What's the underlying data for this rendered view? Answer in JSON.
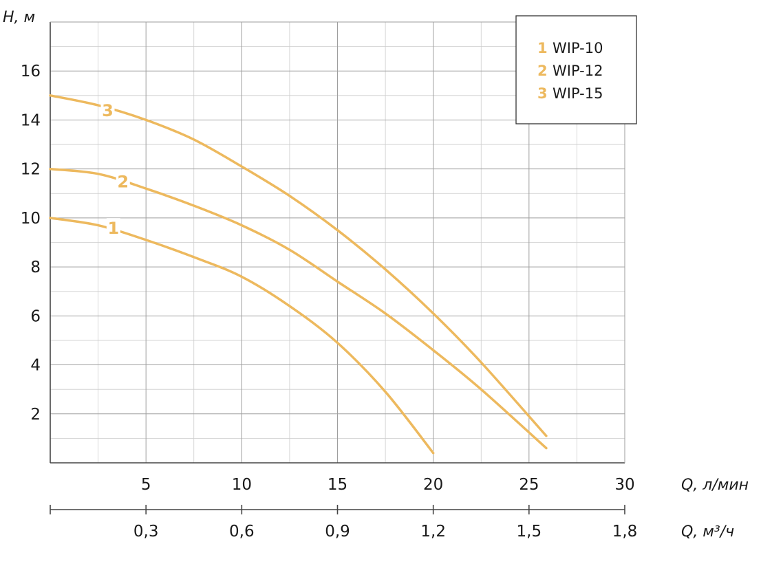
{
  "chart_data": {
    "type": "line",
    "ylabel": "H, м",
    "xlabel": "Q, л/мин",
    "x2label": "Q, м³/ч",
    "xlim": [
      0,
      30
    ],
    "ylim": [
      0,
      18
    ],
    "y_ticks": [
      2,
      4,
      6,
      8,
      10,
      12,
      14,
      16
    ],
    "x_ticks": [
      {
        "value": 5,
        "label": "5"
      },
      {
        "value": 10,
        "label": "10"
      },
      {
        "value": 15,
        "label": "15"
      },
      {
        "value": 20,
        "label": "20"
      },
      {
        "value": 25,
        "label": "25"
      },
      {
        "value": 30,
        "label": "30"
      }
    ],
    "x2_ticks": [
      {
        "value": 5,
        "label": "0,3"
      },
      {
        "value": 10,
        "label": "0,6"
      },
      {
        "value": 15,
        "label": "0,9"
      },
      {
        "value": 20,
        "label": "1,2"
      },
      {
        "value": 25,
        "label": "1,5"
      },
      {
        "value": 30,
        "label": "1,8"
      }
    ],
    "grid": true,
    "legend_position": "top-right",
    "curve_color": "#edb95e",
    "series": [
      {
        "name": "WIP-10",
        "label": "1",
        "label_at": [
          3.3,
          9.6
        ],
        "x": [
          0,
          2.5,
          5,
          7.5,
          10,
          12.5,
          15,
          17.5,
          20
        ],
        "y": [
          10.0,
          9.7,
          9.1,
          8.4,
          7.6,
          6.4,
          4.9,
          2.9,
          0.4
        ]
      },
      {
        "name": "WIP-12",
        "label": "2",
        "label_at": [
          3.8,
          11.5
        ],
        "x": [
          0,
          2.5,
          5,
          7.5,
          10,
          12.5,
          15,
          17.5,
          20,
          22.5,
          25.9
        ],
        "y": [
          12.0,
          11.8,
          11.2,
          10.5,
          9.7,
          8.7,
          7.4,
          6.1,
          4.6,
          3.0,
          0.6
        ]
      },
      {
        "name": "WIP-15",
        "label": "3",
        "label_at": [
          3.0,
          14.4
        ],
        "x": [
          0,
          2.5,
          5,
          7.5,
          10,
          12.5,
          15,
          17.5,
          20,
          22.5,
          25.9
        ],
        "y": [
          15.0,
          14.6,
          14.0,
          13.2,
          12.1,
          10.9,
          9.5,
          7.9,
          6.1,
          4.1,
          1.1
        ]
      }
    ],
    "legend": [
      {
        "num": "1",
        "text": "WIP-10"
      },
      {
        "num": "2",
        "text": "WIP-12"
      },
      {
        "num": "3",
        "text": "WIP-15"
      }
    ]
  }
}
